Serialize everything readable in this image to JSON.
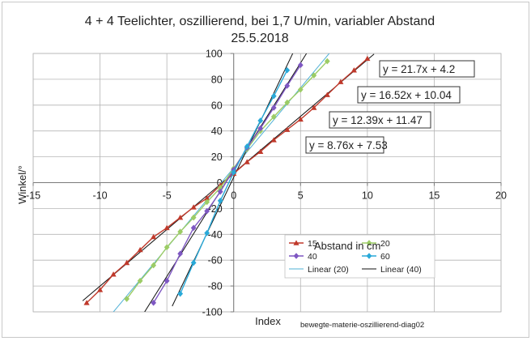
{
  "chart_data": {
    "type": "scatter",
    "title": "4 + 4 Teelichter, oszillierend, bei 1,7 U/min, variabler Abstand",
    "subtitle": "25.5.2018",
    "xlabel": "Abstand in cm",
    "ylabel": "Winkel/°",
    "xlim": [
      -15,
      20
    ],
    "ylim": [
      -100,
      100
    ],
    "x_ticks": [
      -15,
      -10,
      -5,
      0,
      5,
      10,
      15,
      20
    ],
    "y_ticks": [
      -100,
      -80,
      -60,
      -40,
      -20,
      0,
      20,
      40,
      60,
      80,
      100
    ],
    "grid": true,
    "legend_position": "bottom-right",
    "bottom_label": "Index",
    "footer_text": "bewegte-materie-oszillierend-diag02",
    "series": [
      {
        "name": "15",
        "color": "#c0392b",
        "marker": "triangle",
        "x": [
          -11,
          -10,
          -9,
          -8,
          -7,
          -6,
          -5,
          -4,
          -3,
          -2,
          -1,
          0,
          1,
          2,
          3,
          4,
          5,
          6,
          7,
          8,
          9,
          10
        ],
        "y": [
          -93,
          -83,
          -71,
          -62,
          -52,
          -42,
          -35,
          -27,
          -19,
          -12,
          -2,
          7,
          16,
          24,
          33,
          41,
          49,
          58,
          68,
          78,
          87,
          96
        ]
      },
      {
        "name": "20",
        "color": "#9ccc65",
        "marker": "diamond",
        "x": [
          -8,
          -7,
          -6,
          -5,
          -4,
          -3,
          -2,
          -1,
          0,
          1,
          2,
          3,
          4,
          5,
          6,
          7
        ],
        "y": [
          -90,
          -76,
          -64,
          -50,
          -38,
          -27,
          -15,
          -4,
          11,
          26,
          40,
          51,
          62,
          72,
          83,
          94
        ]
      },
      {
        "name": "40",
        "color": "#7e57c2",
        "marker": "diamond",
        "x": [
          -6,
          -5,
          -4,
          -3,
          -2,
          -1,
          0,
          1,
          2,
          3,
          4,
          5
        ],
        "y": [
          -93,
          -76,
          -55,
          -35,
          -22,
          -7,
          10,
          27,
          42,
          58,
          75,
          91
        ]
      },
      {
        "name": "60",
        "color": "#29a9d8",
        "marker": "diamond",
        "x": [
          -4,
          -3,
          -2,
          -1,
          0,
          1,
          2,
          3,
          4
        ],
        "y": [
          -86,
          -62,
          -39,
          -14,
          8,
          28,
          48,
          67,
          87
        ]
      }
    ],
    "trendlines": [
      {
        "series": "15",
        "slope": 8.76,
        "intercept": 7.53,
        "color": "#111111",
        "legend": false
      },
      {
        "series": "20",
        "slope": 12.39,
        "intercept": 11.47,
        "color": "#4fb0d6",
        "legend": true,
        "legend_name": "Linear (20)"
      },
      {
        "series": "40",
        "slope": 16.52,
        "intercept": 10.04,
        "color": "#111111",
        "legend": true,
        "legend_name": "Linear (40)"
      },
      {
        "series": "60",
        "slope": 21.7,
        "intercept": 4.2,
        "color": "#111111",
        "legend": false
      }
    ],
    "equations": [
      {
        "text": "y = 21.7x + 4.2"
      },
      {
        "text": "y = 16.52x + 10.04"
      },
      {
        "text": "y = 12.39x + 11.47"
      },
      {
        "text": "y = 8.76x + 7.53"
      }
    ]
  }
}
